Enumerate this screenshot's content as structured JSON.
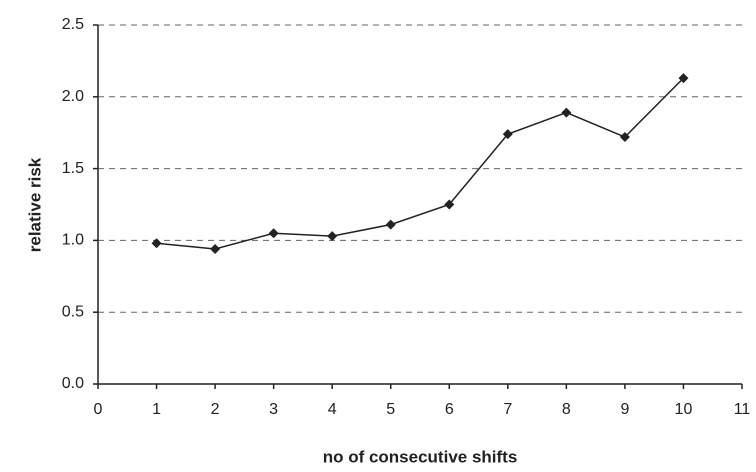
{
  "chart_data": {
    "type": "line",
    "x_label": "no of consecutive shifts",
    "y_label": "relative risk",
    "x": [
      1,
      2,
      3,
      4,
      5,
      6,
      7,
      8,
      9,
      10
    ],
    "values": [
      0.98,
      0.94,
      1.05,
      1.03,
      1.11,
      1.25,
      1.74,
      1.89,
      1.72,
      2.13
    ],
    "color": "#222222",
    "xlim": [
      0,
      11
    ],
    "xticks": [
      0,
      1,
      2,
      3,
      4,
      5,
      6,
      7,
      8,
      9,
      10,
      11
    ],
    "ylim": [
      0,
      2.5
    ],
    "yticks": [
      {
        "value": 0,
        "label": "0.0"
      },
      0.5,
      {
        "value": 1,
        "label": "1.0"
      },
      1.5,
      {
        "value": 2,
        "label": "2.0"
      },
      2.5
    ],
    "grid": true
  }
}
